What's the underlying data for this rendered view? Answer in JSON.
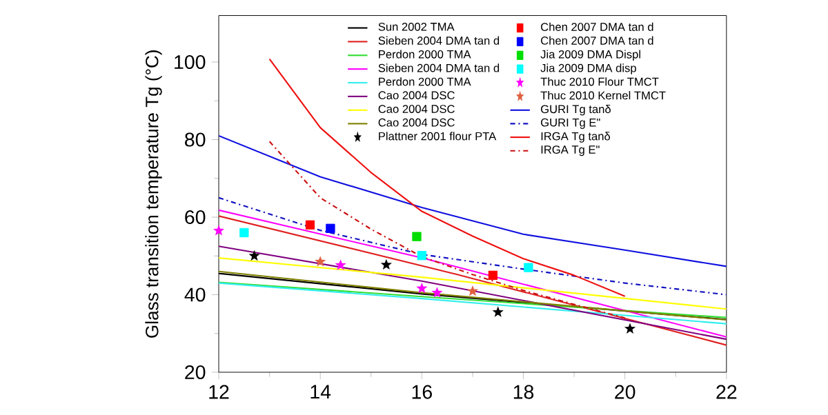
{
  "chart_data": {
    "type": "line",
    "ylabel": "Glass transition temperature Tg (°C)",
    "xlim": [
      12,
      22
    ],
    "ylim": [
      20,
      112
    ],
    "xticks": [
      12,
      14,
      16,
      18,
      20,
      22
    ],
    "yticks": [
      20,
      40,
      60,
      80,
      100
    ],
    "legend": "top",
    "grid": false,
    "series": [
      {
        "name": "Sun 2002 TMA",
        "color": "#000000",
        "x": [
          12,
          16,
          22
        ],
        "values": [
          45.5,
          40.2,
          33.6
        ]
      },
      {
        "name": "Sieben 2004 DMA tan d",
        "color": "#e02020",
        "x": [
          12,
          16.7,
          22
        ],
        "values": [
          60.3,
          45.2,
          27
        ]
      },
      {
        "name": "Perdon 2000 TMA",
        "color": "#33dd33",
        "x": [
          12,
          16,
          22
        ],
        "values": [
          43.2,
          39.5,
          34.1
        ]
      },
      {
        "name": "Sieben 2004 DMA tan d",
        "color": "#ff00ff",
        "x": [
          12,
          16,
          22
        ],
        "values": [
          61.8,
          49.5,
          29.1
        ]
      },
      {
        "name": "Perdon 2000 TMA",
        "color": "#33eeee",
        "x": [
          12,
          16,
          22
        ],
        "values": [
          43,
          39,
          32.5
        ]
      },
      {
        "name": "Cao 2004 DSC",
        "color": "#800080",
        "x": [
          12,
          16,
          22
        ],
        "values": [
          52.5,
          43.5,
          28.5
        ]
      },
      {
        "name": "Cao 2004 DSC",
        "color": "#ffff00",
        "x": [
          12,
          16,
          22
        ],
        "values": [
          49.5,
          44.5,
          36.3
        ]
      },
      {
        "name": "Cao 2004 DSC",
        "color": "#808000",
        "x": [
          12,
          16,
          22
        ],
        "values": [
          46,
          40.5,
          33.5
        ]
      },
      {
        "name": "Plattner  2001 flour  PTA",
        "type": "scatter",
        "marker": "star",
        "color": "#000000",
        "x": [
          12.7,
          15.3,
          17.5,
          20.1
        ],
        "values": [
          50,
          47.7,
          35.5,
          31.2
        ]
      },
      {
        "name": "Chen 2007 DMA tan d",
        "type": "scatter",
        "marker": "square",
        "color": "#ff0000",
        "x": [
          13.8,
          17.4
        ],
        "values": [
          58,
          45
        ]
      },
      {
        "name": "Chen 2007 DMA tan d",
        "type": "scatter",
        "marker": "square",
        "color": "#0000ff",
        "x": [
          14.2
        ],
        "values": [
          57.1
        ]
      },
      {
        "name": "Jia 2009 DMA Displ",
        "type": "scatter",
        "marker": "square",
        "color": "#00dd00",
        "x": [
          15.9
        ],
        "values": [
          55
        ]
      },
      {
        "name": "Jia 2009 DMA disp",
        "type": "scatter",
        "marker": "square",
        "color": "#00ffff",
        "x": [
          12.5,
          16.0,
          18.1
        ],
        "values": [
          56,
          50.1,
          47
        ]
      },
      {
        "name": "Thuc 2010 Flour TMCT",
        "type": "scatter",
        "marker": "star",
        "color": "#ff00ff",
        "x": [
          12.0,
          14.4,
          16.0,
          16.3
        ],
        "values": [
          56.5,
          47.6,
          41.6,
          40.5
        ]
      },
      {
        "name": "Thuc 2010 Kernel TMCT",
        "type": "scatter",
        "marker": "star",
        "color": "#e06040",
        "x": [
          14.0,
          17.0
        ],
        "values": [
          48.5,
          40.9
        ]
      },
      {
        "name": "GURI Tg tanδ",
        "color": "#1010e0",
        "x": [
          12,
          14,
          16,
          18,
          20,
          22
        ],
        "values": [
          81,
          70.4,
          62.5,
          55.6,
          51.5,
          47.3
        ]
      },
      {
        "name": "GURI Tg E\"",
        "color": "#1010c0",
        "line_style": "dashdot",
        "x": [
          12,
          14,
          16,
          18,
          20,
          22
        ],
        "values": [
          65,
          56.6,
          50.4,
          46.6,
          43,
          40
        ]
      },
      {
        "name": "IRGA Tg tanδ",
        "color": "#ee1010",
        "x": [
          13,
          14,
          15,
          16,
          17,
          18,
          19,
          20
        ],
        "values": [
          100.8,
          83.1,
          71.5,
          61.5,
          55.1,
          49.3,
          45,
          39.6
        ]
      },
      {
        "name": "IRGA Tg E\"",
        "color": "#cc1010",
        "line_style": "dashdot",
        "x": [
          13,
          14,
          15,
          16,
          17,
          18,
          19,
          20
        ],
        "values": [
          79.5,
          65,
          56.9,
          49.8,
          45.2,
          41.1,
          37.5,
          34
        ]
      }
    ]
  }
}
